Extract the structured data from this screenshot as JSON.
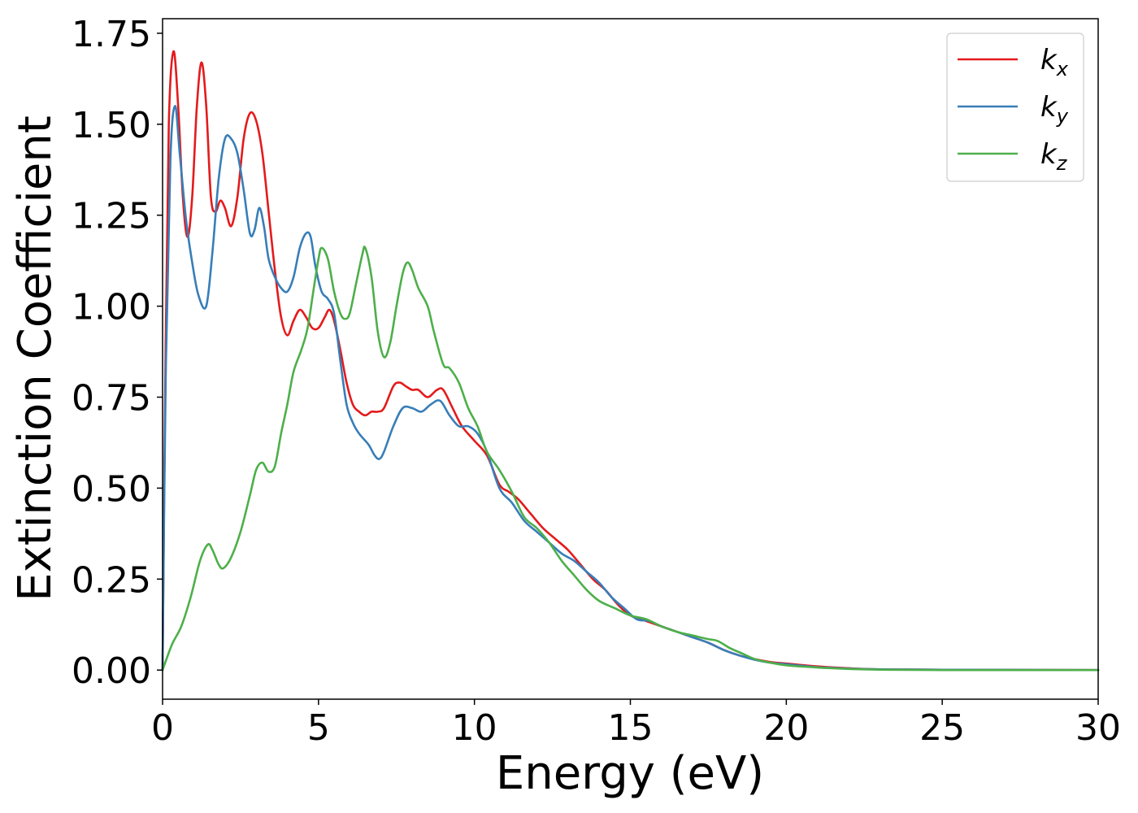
{
  "chart_data": {
    "type": "line",
    "xlabel": "Energy (eV)",
    "ylabel": "Extinction Coefficient",
    "xlim": [
      0,
      30
    ],
    "ylim": [
      -0.08,
      1.79
    ],
    "xticks": [
      0,
      5,
      10,
      15,
      20,
      25,
      30
    ],
    "xtick_labels": [
      "0",
      "5",
      "10",
      "15",
      "20",
      "25",
      "30"
    ],
    "yticks": [
      0.0,
      0.25,
      0.5,
      0.75,
      1.0,
      1.25,
      1.5,
      1.75
    ],
    "ytick_labels": [
      "0.00",
      "0.25",
      "0.50",
      "0.75",
      "1.00",
      "1.25",
      "1.50",
      "1.75"
    ],
    "grid": false,
    "legend_position": "top-right",
    "series": [
      {
        "name": "k_x",
        "legend_base": "k",
        "legend_sub": "x",
        "color": "#e41a1c",
        "points": [
          [
            0,
            0
          ],
          [
            0.1,
            0.9
          ],
          [
            0.2,
            1.5
          ],
          [
            0.35,
            1.7
          ],
          [
            0.5,
            1.55
          ],
          [
            0.65,
            1.3
          ],
          [
            0.8,
            1.19
          ],
          [
            0.95,
            1.3
          ],
          [
            1.1,
            1.55
          ],
          [
            1.25,
            1.67
          ],
          [
            1.4,
            1.55
          ],
          [
            1.55,
            1.3
          ],
          [
            1.7,
            1.26
          ],
          [
            1.85,
            1.29
          ],
          [
            2.0,
            1.27
          ],
          [
            2.2,
            1.22
          ],
          [
            2.4,
            1.3
          ],
          [
            2.6,
            1.46
          ],
          [
            2.8,
            1.53
          ],
          [
            3.0,
            1.51
          ],
          [
            3.2,
            1.42
          ],
          [
            3.4,
            1.26
          ],
          [
            3.6,
            1.1
          ],
          [
            3.8,
            0.97
          ],
          [
            4.0,
            0.92
          ],
          [
            4.2,
            0.96
          ],
          [
            4.4,
            0.99
          ],
          [
            4.6,
            0.97
          ],
          [
            4.8,
            0.94
          ],
          [
            5.0,
            0.94
          ],
          [
            5.2,
            0.97
          ],
          [
            5.35,
            0.99
          ],
          [
            5.5,
            0.96
          ],
          [
            5.7,
            0.88
          ],
          [
            5.9,
            0.79
          ],
          [
            6.1,
            0.73
          ],
          [
            6.3,
            0.71
          ],
          [
            6.5,
            0.7
          ],
          [
            6.7,
            0.71
          ],
          [
            6.9,
            0.71
          ],
          [
            7.1,
            0.72
          ],
          [
            7.4,
            0.78
          ],
          [
            7.6,
            0.79
          ],
          [
            7.8,
            0.78
          ],
          [
            8.0,
            0.77
          ],
          [
            8.2,
            0.77
          ],
          [
            8.5,
            0.75
          ],
          [
            8.8,
            0.77
          ],
          [
            9.0,
            0.77
          ],
          [
            9.3,
            0.72
          ],
          [
            9.6,
            0.67
          ],
          [
            10.0,
            0.63
          ],
          [
            10.4,
            0.59
          ],
          [
            10.8,
            0.51
          ],
          [
            11.1,
            0.49
          ],
          [
            11.4,
            0.47
          ],
          [
            11.8,
            0.43
          ],
          [
            12.2,
            0.39
          ],
          [
            12.6,
            0.36
          ],
          [
            13.0,
            0.33
          ],
          [
            13.4,
            0.29
          ],
          [
            13.8,
            0.25
          ],
          [
            14.2,
            0.22
          ],
          [
            14.6,
            0.18
          ],
          [
            15.0,
            0.15
          ],
          [
            15.5,
            0.135
          ],
          [
            16.0,
            0.12
          ],
          [
            16.5,
            0.105
          ],
          [
            17.0,
            0.09
          ],
          [
            17.5,
            0.075
          ],
          [
            18.0,
            0.055
          ],
          [
            18.5,
            0.04
          ],
          [
            19.0,
            0.03
          ],
          [
            19.5,
            0.022
          ],
          [
            20.0,
            0.018
          ],
          [
            21.0,
            0.01
          ],
          [
            22.0,
            0.005
          ],
          [
            23.0,
            0.002
          ],
          [
            25.0,
            0.001
          ],
          [
            30.0,
            0.0
          ]
        ]
      },
      {
        "name": "k_y",
        "legend_base": "k",
        "legend_sub": "y",
        "color": "#377eb8",
        "points": [
          [
            0,
            0
          ],
          [
            0.1,
            0.8
          ],
          [
            0.25,
            1.4
          ],
          [
            0.4,
            1.55
          ],
          [
            0.55,
            1.42
          ],
          [
            0.75,
            1.24
          ],
          [
            0.95,
            1.12
          ],
          [
            1.15,
            1.03
          ],
          [
            1.4,
            1.0
          ],
          [
            1.6,
            1.15
          ],
          [
            1.8,
            1.35
          ],
          [
            2.0,
            1.46
          ],
          [
            2.2,
            1.46
          ],
          [
            2.4,
            1.42
          ],
          [
            2.6,
            1.32
          ],
          [
            2.8,
            1.2
          ],
          [
            2.95,
            1.21
          ],
          [
            3.1,
            1.27
          ],
          [
            3.25,
            1.22
          ],
          [
            3.4,
            1.13
          ],
          [
            3.6,
            1.08
          ],
          [
            3.8,
            1.05
          ],
          [
            4.0,
            1.04
          ],
          [
            4.2,
            1.08
          ],
          [
            4.4,
            1.16
          ],
          [
            4.6,
            1.2
          ],
          [
            4.75,
            1.19
          ],
          [
            4.9,
            1.11
          ],
          [
            5.1,
            1.04
          ],
          [
            5.3,
            1.02
          ],
          [
            5.5,
            0.98
          ],
          [
            5.7,
            0.85
          ],
          [
            5.9,
            0.73
          ],
          [
            6.1,
            0.68
          ],
          [
            6.3,
            0.65
          ],
          [
            6.6,
            0.62
          ],
          [
            6.8,
            0.59
          ],
          [
            6.95,
            0.58
          ],
          [
            7.1,
            0.6
          ],
          [
            7.4,
            0.67
          ],
          [
            7.7,
            0.72
          ],
          [
            8.0,
            0.72
          ],
          [
            8.3,
            0.71
          ],
          [
            8.6,
            0.73
          ],
          [
            8.9,
            0.74
          ],
          [
            9.2,
            0.7
          ],
          [
            9.5,
            0.67
          ],
          [
            9.8,
            0.67
          ],
          [
            10.1,
            0.65
          ],
          [
            10.4,
            0.6
          ],
          [
            10.8,
            0.5
          ],
          [
            11.2,
            0.46
          ],
          [
            11.6,
            0.41
          ],
          [
            12.0,
            0.38
          ],
          [
            12.4,
            0.35
          ],
          [
            12.8,
            0.32
          ],
          [
            13.2,
            0.3
          ],
          [
            13.6,
            0.27
          ],
          [
            14.0,
            0.24
          ],
          [
            14.4,
            0.2
          ],
          [
            14.8,
            0.17
          ],
          [
            15.2,
            0.14
          ],
          [
            15.6,
            0.135
          ],
          [
            16.0,
            0.12
          ],
          [
            16.5,
            0.105
          ],
          [
            17.0,
            0.09
          ],
          [
            17.5,
            0.075
          ],
          [
            18.0,
            0.055
          ],
          [
            18.5,
            0.04
          ],
          [
            19.0,
            0.028
          ],
          [
            19.5,
            0.02
          ],
          [
            20.0,
            0.016
          ],
          [
            21.0,
            0.008
          ],
          [
            22.0,
            0.004
          ],
          [
            23.0,
            0.002
          ],
          [
            25.0,
            0.001
          ],
          [
            30.0,
            0.0
          ]
        ]
      },
      {
        "name": "k_z",
        "legend_base": "k",
        "legend_sub": "z",
        "color": "#4daf4a",
        "points": [
          [
            0,
            0
          ],
          [
            0.3,
            0.07
          ],
          [
            0.6,
            0.12
          ],
          [
            0.9,
            0.2
          ],
          [
            1.2,
            0.3
          ],
          [
            1.45,
            0.345
          ],
          [
            1.6,
            0.33
          ],
          [
            1.8,
            0.29
          ],
          [
            1.95,
            0.28
          ],
          [
            2.2,
            0.31
          ],
          [
            2.5,
            0.38
          ],
          [
            2.8,
            0.48
          ],
          [
            3.0,
            0.55
          ],
          [
            3.2,
            0.57
          ],
          [
            3.4,
            0.545
          ],
          [
            3.6,
            0.56
          ],
          [
            3.8,
            0.65
          ],
          [
            4.0,
            0.73
          ],
          [
            4.2,
            0.82
          ],
          [
            4.45,
            0.88
          ],
          [
            4.65,
            0.94
          ],
          [
            4.85,
            1.05
          ],
          [
            5.0,
            1.13
          ],
          [
            5.1,
            1.16
          ],
          [
            5.3,
            1.13
          ],
          [
            5.5,
            1.04
          ],
          [
            5.7,
            0.98
          ],
          [
            5.85,
            0.965
          ],
          [
            6.0,
            0.98
          ],
          [
            6.2,
            1.06
          ],
          [
            6.4,
            1.14
          ],
          [
            6.5,
            1.16
          ],
          [
            6.7,
            1.08
          ],
          [
            6.9,
            0.93
          ],
          [
            7.1,
            0.86
          ],
          [
            7.3,
            0.9
          ],
          [
            7.5,
            1.0
          ],
          [
            7.7,
            1.09
          ],
          [
            7.85,
            1.12
          ],
          [
            8.0,
            1.1
          ],
          [
            8.2,
            1.05
          ],
          [
            8.5,
            1.0
          ],
          [
            8.7,
            0.93
          ],
          [
            9.0,
            0.84
          ],
          [
            9.2,
            0.83
          ],
          [
            9.5,
            0.79
          ],
          [
            9.8,
            0.72
          ],
          [
            10.1,
            0.67
          ],
          [
            10.4,
            0.6
          ],
          [
            10.8,
            0.55
          ],
          [
            11.2,
            0.49
          ],
          [
            11.6,
            0.42
          ],
          [
            12.0,
            0.39
          ],
          [
            12.4,
            0.35
          ],
          [
            12.8,
            0.3
          ],
          [
            13.2,
            0.26
          ],
          [
            13.6,
            0.22
          ],
          [
            14.0,
            0.19
          ],
          [
            14.5,
            0.17
          ],
          [
            15.0,
            0.15
          ],
          [
            15.5,
            0.14
          ],
          [
            16.0,
            0.12
          ],
          [
            16.5,
            0.105
          ],
          [
            17.0,
            0.095
          ],
          [
            17.5,
            0.085
          ],
          [
            17.8,
            0.08
          ],
          [
            18.2,
            0.06
          ],
          [
            18.6,
            0.045
          ],
          [
            19.0,
            0.03
          ],
          [
            19.5,
            0.02
          ],
          [
            20.0,
            0.013
          ],
          [
            21.0,
            0.007
          ],
          [
            22.0,
            0.003
          ],
          [
            23.0,
            0.001
          ],
          [
            25.0,
            0.0
          ],
          [
            30.0,
            0.0
          ]
        ]
      }
    ]
  }
}
